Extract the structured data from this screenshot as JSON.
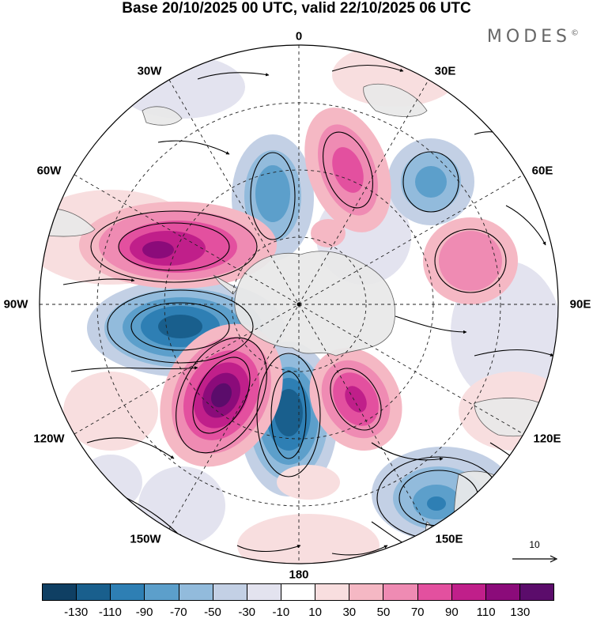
{
  "header": {
    "title": "Base 20/10/2025 00 UTC, valid 22/10/2025 06 UTC",
    "brand": "MODES",
    "brand_mark": "©"
  },
  "map": {
    "projection": "south-polar-stereographic",
    "longitude_labels": {
      "top": "0",
      "top_right": "30E",
      "right_upper": "60E",
      "right": "90E",
      "right_lower": "120E",
      "bottom_right": "150E",
      "bottom": "180",
      "bottom_left": "150W",
      "left_lower": "120W",
      "left": "90W",
      "left_upper": "60W",
      "top_left": "30W"
    },
    "reference_vector": {
      "value": "10"
    }
  },
  "colorbar": {
    "colors": [
      "#0f3f63",
      "#195f8d",
      "#2e7fb4",
      "#5c9fcb",
      "#92bbdc",
      "#c3d0e5",
      "#e3e3ef",
      "#ffffff",
      "#f8dedf",
      "#f5b8c4",
      "#ef8bb3",
      "#e3509f",
      "#c01f8a",
      "#8b0b7a",
      "#5b0c6b"
    ],
    "tick_labels": [
      "-130",
      "-110",
      "-90",
      "-70",
      "-50",
      "-30",
      "-10",
      "10",
      "30",
      "50",
      "70",
      "90",
      "110",
      "130"
    ]
  }
}
